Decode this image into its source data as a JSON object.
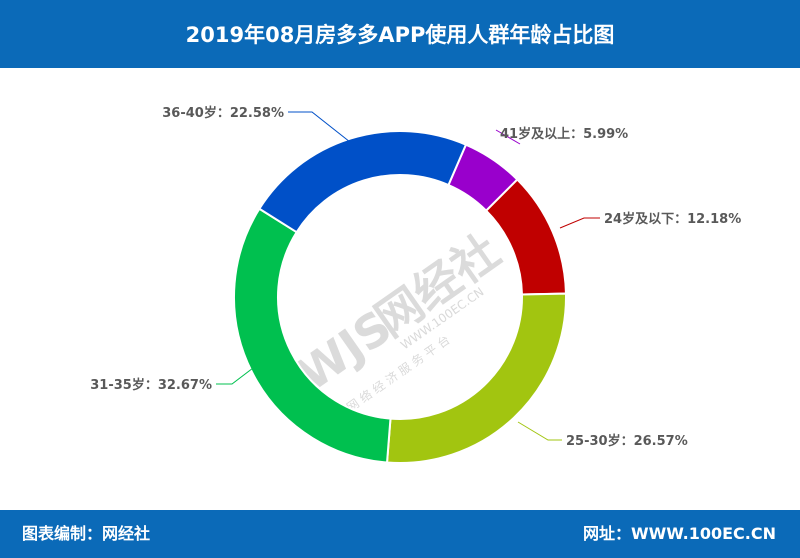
{
  "header": {
    "title": "2019年08月房多多APP使用人群年龄占比图"
  },
  "footer": {
    "left": "图表编制：网经社",
    "right": "网址：WWW.100EC.CN"
  },
  "watermark": {
    "logo": "WJS",
    "brand": "网经社",
    "domain": "WWW.100EC.CN",
    "tagline": "网 络 经 济 服 务 平 台"
  },
  "chart_data": {
    "type": "pie",
    "style": "donut",
    "title": "2019年08月房多多APP使用人群年龄占比图",
    "unit": "%",
    "slices": [
      {
        "label": "41岁及以上",
        "value": 5.99,
        "display": "41岁及以上：5.99%",
        "color": "#9900cc"
      },
      {
        "label": "24岁及以下",
        "value": 12.18,
        "display": "24岁及以下：12.18%",
        "color": "#c00000"
      },
      {
        "label": "25-30岁",
        "value": 26.57,
        "display": "25-30岁：26.57%",
        "color": "#a2c510"
      },
      {
        "label": "31-35岁",
        "value": 32.67,
        "display": "31-35岁：32.67%",
        "color": "#00c04f"
      },
      {
        "label": "36-40岁",
        "value": 22.58,
        "display": "36-40岁：22.58%",
        "color": "#0050c8"
      }
    ]
  }
}
